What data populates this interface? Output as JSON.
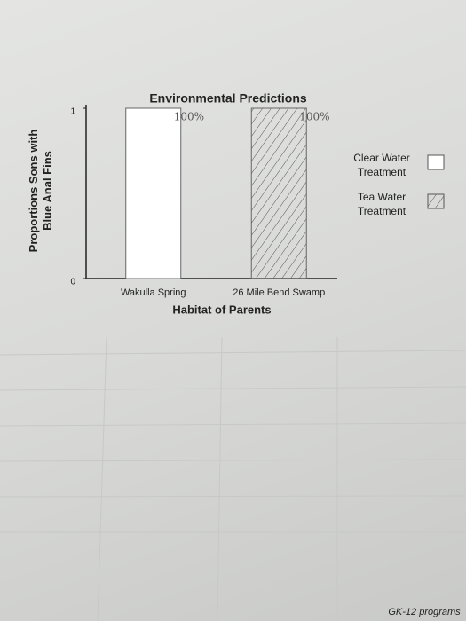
{
  "chart_data": {
    "type": "bar",
    "title": "Environmental Predictions",
    "y_label": "Proportions Sons with Blue Anal Fins",
    "x_label": "Habitat of Parents",
    "categories": [
      "Wakulla Spring",
      "26 Mile Bend Swamp"
    ],
    "series": [
      {
        "name": "Clear Water Treatment",
        "color": "#ffffff",
        "pattern": "none",
        "values": [
          1,
          null
        ],
        "value_labels": [
          "100%",
          null
        ]
      },
      {
        "name": "Tea Water Treatment",
        "color": "#ffffff",
        "pattern": "hatch",
        "values": [
          null,
          1
        ],
        "value_labels": [
          null,
          "100%"
        ]
      }
    ],
    "ylim": [
      0,
      1
    ],
    "yticks": [
      0,
      1
    ],
    "grid": false,
    "legend": "right"
  },
  "footer": "GK-12 programs"
}
